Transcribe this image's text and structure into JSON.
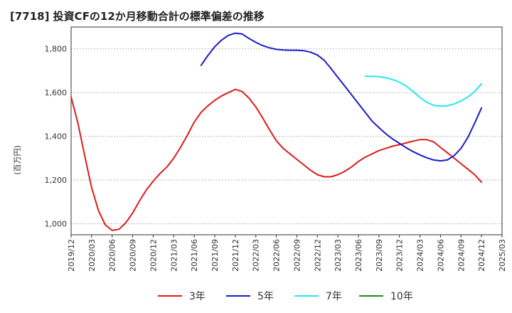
{
  "title": "[7718]  投資CFの12か月移動合計の標準偏差の推移",
  "chart_data": {
    "type": "line",
    "ylabel": "(百万円)",
    "ylim": [
      950,
      1900
    ],
    "yticks": [
      1000,
      1200,
      1400,
      1600,
      1800
    ],
    "ytick_labels": [
      "1,000",
      "1,200",
      "1,400",
      "1,600",
      "1,800"
    ],
    "xlim": [
      "2019/12",
      "2025/03"
    ],
    "xticks": [
      "2019/12",
      "2020/03",
      "2020/06",
      "2020/09",
      "2020/12",
      "2021/03",
      "2021/06",
      "2021/09",
      "2021/12",
      "2022/03",
      "2022/06",
      "2022/09",
      "2022/12",
      "2023/03",
      "2023/06",
      "2023/09",
      "2023/12",
      "2024/03",
      "2024/06",
      "2024/09",
      "2024/12",
      "2025/03"
    ],
    "grid": "horizontal-dashed",
    "legend_position": "bottom",
    "series": [
      {
        "name": "3年",
        "color": "#dd1c1c",
        "x": [
          "2019/12",
          "2020/01",
          "2020/02",
          "2020/03",
          "2020/04",
          "2020/05",
          "2020/06",
          "2020/07",
          "2020/08",
          "2020/09",
          "2020/10",
          "2020/11",
          "2020/12",
          "2021/01",
          "2021/02",
          "2021/03",
          "2021/04",
          "2021/05",
          "2021/06",
          "2021/07",
          "2021/08",
          "2021/09",
          "2021/10",
          "2021/11",
          "2021/12",
          "2022/01",
          "2022/02",
          "2022/03",
          "2022/04",
          "2022/05",
          "2022/06",
          "2022/07",
          "2022/08",
          "2022/09",
          "2022/10",
          "2022/11",
          "2022/12",
          "2023/01",
          "2023/02",
          "2023/03",
          "2023/04",
          "2023/05",
          "2023/06",
          "2023/07",
          "2023/08",
          "2023/09",
          "2023/10",
          "2023/11",
          "2023/12",
          "2024/01",
          "2024/02",
          "2024/03",
          "2024/04",
          "2024/05",
          "2024/06",
          "2024/07",
          "2024/08",
          "2024/09",
          "2024/10",
          "2024/11",
          "2024/12"
        ],
        "values": [
          1580,
          1460,
          1310,
          1165,
          1060,
          995,
          970,
          975,
          1005,
          1050,
          1105,
          1155,
          1195,
          1230,
          1260,
          1300,
          1350,
          1405,
          1465,
          1510,
          1540,
          1565,
          1585,
          1600,
          1615,
          1605,
          1575,
          1535,
          1485,
          1430,
          1380,
          1345,
          1320,
          1295,
          1270,
          1245,
          1225,
          1215,
          1215,
          1225,
          1240,
          1260,
          1285,
          1305,
          1320,
          1335,
          1345,
          1355,
          1362,
          1370,
          1378,
          1385,
          1385,
          1375,
          1350,
          1325,
          1300,
          1275,
          1250,
          1225,
          1190
        ]
      },
      {
        "name": "5年",
        "color": "#1c1cc8",
        "x": [
          "2021/07",
          "2021/08",
          "2021/09",
          "2021/10",
          "2021/11",
          "2021/12",
          "2022/01",
          "2022/02",
          "2022/03",
          "2022/04",
          "2022/05",
          "2022/06",
          "2022/07",
          "2022/08",
          "2022/09",
          "2022/10",
          "2022/11",
          "2022/12",
          "2023/01",
          "2023/02",
          "2023/03",
          "2023/04",
          "2023/05",
          "2023/06",
          "2023/07",
          "2023/08",
          "2023/09",
          "2023/10",
          "2023/11",
          "2023/12",
          "2024/01",
          "2024/02",
          "2024/03",
          "2024/04",
          "2024/05",
          "2024/06",
          "2024/07",
          "2024/08",
          "2024/09",
          "2024/10",
          "2024/11",
          "2024/12"
        ],
        "values": [
          1725,
          1770,
          1810,
          1840,
          1862,
          1872,
          1868,
          1848,
          1830,
          1815,
          1805,
          1798,
          1795,
          1794,
          1794,
          1792,
          1785,
          1772,
          1748,
          1710,
          1670,
          1630,
          1590,
          1550,
          1510,
          1470,
          1440,
          1412,
          1388,
          1368,
          1348,
          1330,
          1315,
          1302,
          1292,
          1288,
          1292,
          1312,
          1345,
          1395,
          1460,
          1530
        ]
      },
      {
        "name": "7年",
        "color": "#22e8f0",
        "x": [
          "2023/07",
          "2023/08",
          "2023/09",
          "2023/10",
          "2023/11",
          "2023/12",
          "2024/01",
          "2024/02",
          "2024/03",
          "2024/04",
          "2024/05",
          "2024/06",
          "2024/07",
          "2024/08",
          "2024/09",
          "2024/10",
          "2024/11",
          "2024/12"
        ],
        "values": [
          1675,
          1675,
          1673,
          1668,
          1660,
          1648,
          1630,
          1605,
          1578,
          1555,
          1542,
          1538,
          1540,
          1548,
          1562,
          1580,
          1605,
          1640
        ]
      },
      {
        "name": "10年",
        "color": "#1a8c1a",
        "x": [],
        "values": []
      }
    ]
  }
}
